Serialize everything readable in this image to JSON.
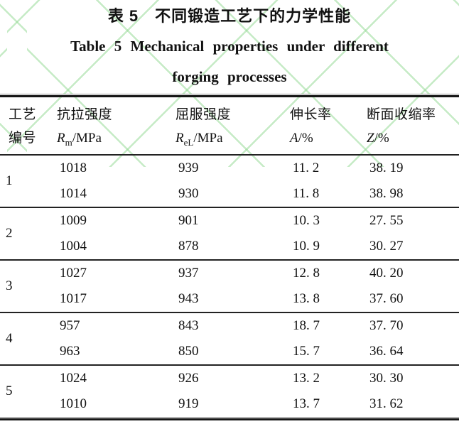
{
  "titles": {
    "zh": "表 5　不同锻造工艺下的力学性能",
    "en_line1": "Table 5  Mechanical properties under different",
    "en_line2": "forging processes"
  },
  "table": {
    "header": {
      "col1_line1": "工艺",
      "col1_line2": "编号",
      "col2_line1": "抗拉强度",
      "col2_sym": "R",
      "col2_sub": "m",
      "col2_unit": "/MPa",
      "col3_line1": "屈服强度",
      "col3_sym": "R",
      "col3_sub": "eL",
      "col3_unit": "/MPa",
      "col4_line1": "伸长率",
      "col4_sym": "A",
      "col4_unit": "/%",
      "col5_line1": "断面收缩率",
      "col5_sym": "Z",
      "col5_unit": "/%"
    },
    "groups": [
      {
        "no": "1",
        "r1": {
          "rm": "1018",
          "rel": "939",
          "a": "11. 2",
          "z": "38. 19"
        },
        "r2": {
          "rm": "1014",
          "rel": "930",
          "a": "11. 8",
          "z": "38. 98"
        }
      },
      {
        "no": "2",
        "r1": {
          "rm": "1009",
          "rel": "901",
          "a": "10. 3",
          "z": "27. 55"
        },
        "r2": {
          "rm": "1004",
          "rel": "878",
          "a": "10. 9",
          "z": "30. 27"
        }
      },
      {
        "no": "3",
        "r1": {
          "rm": "1027",
          "rel": "937",
          "a": "12. 8",
          "z": "40. 20"
        },
        "r2": {
          "rm": "1017",
          "rel": "943",
          "a": "13. 8",
          "z": "37. 60"
        }
      },
      {
        "no": "4",
        "r1": {
          "rm": "957",
          "rel": "843",
          "a": "18. 7",
          "z": "37. 70"
        },
        "r2": {
          "rm": "963",
          "rel": "850",
          "a": "15. 7",
          "z": "36. 64"
        }
      },
      {
        "no": "5",
        "r1": {
          "rm": "1024",
          "rel": "926",
          "a": "13. 2",
          "z": "30. 30"
        },
        "r2": {
          "rm": "1010",
          "rel": "919",
          "a": "13. 7",
          "z": "31. 62"
        }
      }
    ]
  },
  "colors": {
    "watermark_green": "#96da96",
    "text": "#111111",
    "rule": "#151515"
  }
}
